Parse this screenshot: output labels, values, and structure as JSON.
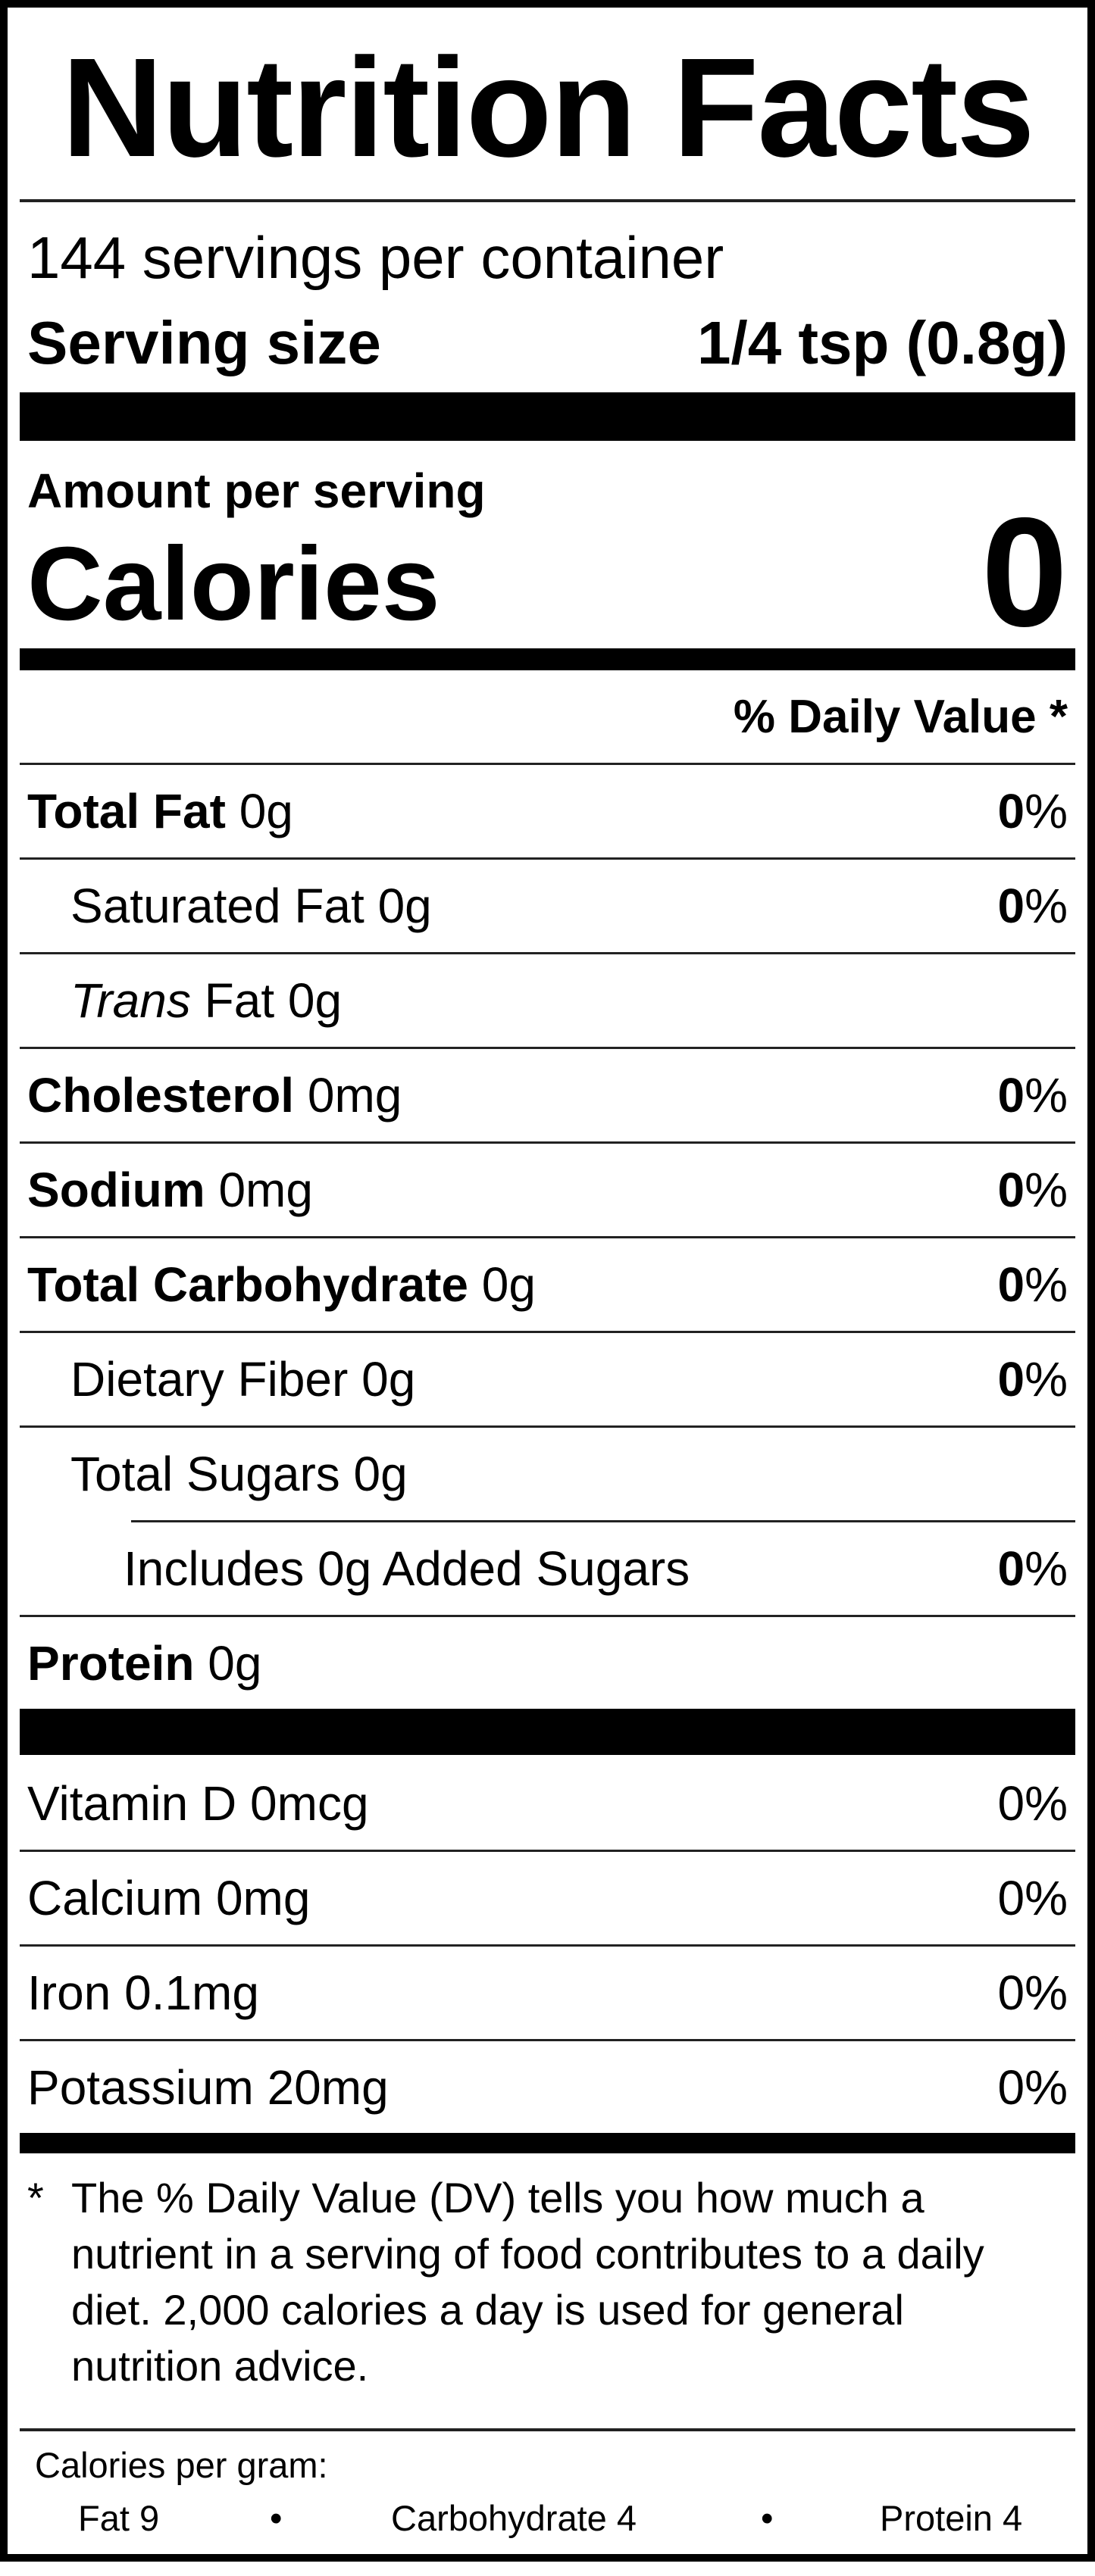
{
  "title": "Nutrition Facts",
  "servings_per_container": "144 servings per container",
  "serving_size": {
    "label": "Serving size",
    "value": "1/4 tsp (0.8g)"
  },
  "amount_per_serving": "Amount per serving",
  "calories": {
    "label": "Calories",
    "value": "0"
  },
  "daily_value_header": "% Daily Value *",
  "percent_sign": "%",
  "nutrients": [
    {
      "name": "Total Fat",
      "amount": "0g",
      "dv": "0"
    },
    {
      "name": "Saturated Fat 0g",
      "dv": "0"
    },
    {
      "name_italic": "Trans",
      "name": " Fat 0g"
    },
    {
      "name": "Cholesterol",
      "amount": "0mg",
      "dv": "0"
    },
    {
      "name": "Sodium",
      "amount": "0mg",
      "dv": "0"
    },
    {
      "name": "Total Carbohydrate",
      "amount": "0g",
      "dv": "0"
    },
    {
      "name": "Dietary Fiber 0g",
      "dv": "0"
    },
    {
      "name": "Total Sugars 0g"
    },
    {
      "name": "Includes 0g Added Sugars",
      "dv": "0"
    },
    {
      "name": "Protein",
      "amount": "0g"
    }
  ],
  "vitamins": [
    {
      "name": "Vitamin D 0mcg",
      "dv": "0%"
    },
    {
      "name": "Calcium 0mg",
      "dv": "0%"
    },
    {
      "name": "Iron 0.1mg",
      "dv": "0%"
    },
    {
      "name": "Potassium 20mg",
      "dv": "0%"
    }
  ],
  "footnote": {
    "star": "*",
    "text": "The % Daily Value (DV) tells you how much a nutrient in a serving of food contributes to a daily diet. 2,000 calories a day is used for general nutrition advice."
  },
  "calories_per_gram": {
    "label": "Calories per gram:",
    "fat": "Fat 9",
    "carbohydrate": "Carbohydrate 4",
    "protein": "Protein 4",
    "separator": "•"
  }
}
